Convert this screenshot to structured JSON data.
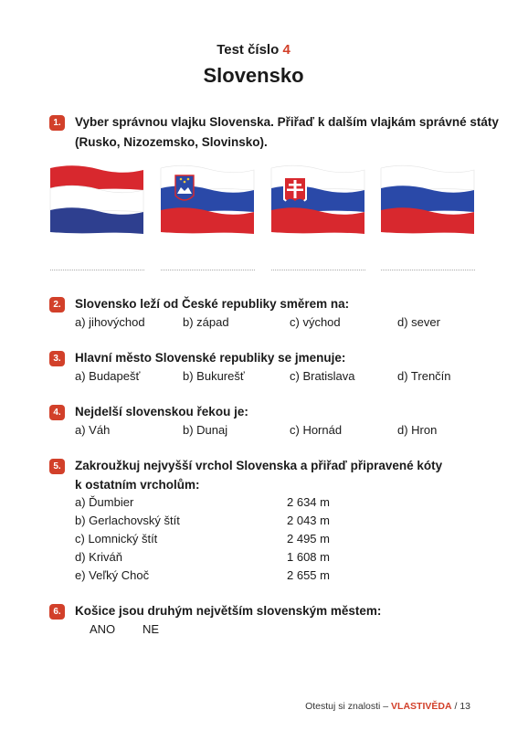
{
  "header": {
    "test_label": "Test číslo",
    "test_number": "4",
    "title": "Slovensko"
  },
  "questions": [
    {
      "number": "1.",
      "text_line1": "Vyber správnou vlajku Slovenska. Přiřaď k dalším vlajkám správné státy",
      "text_line2": "(Rusko, Nizozemsko, Slovinsko)."
    },
    {
      "number": "2.",
      "text": "Slovensko leží od České republiky směrem na:",
      "options": [
        "a) jihovýchod",
        "b) západ",
        "c) východ",
        "d) sever"
      ]
    },
    {
      "number": "3.",
      "text": "Hlavní město Slovenské republiky se jmenuje:",
      "options": [
        "a) Budapešť",
        "b) Bukurešť",
        "c) Bratislava",
        "d) Trenčín"
      ]
    },
    {
      "number": "4.",
      "text": "Nejdelší slovenskou řekou je:",
      "options": [
        "a) Váh",
        "b) Dunaj",
        "c) Hornád",
        "d) Hron"
      ]
    },
    {
      "number": "5.",
      "text_line1": "Zakroužkuj nejvyšší vrchol Slovenska a přiřaď připravené kóty",
      "text_line2": "k ostatním vrcholům:",
      "peaks": [
        {
          "label": "a) Ďumbier",
          "height": "2 634 m"
        },
        {
          "label": "b) Gerlachovský štít",
          "height": "2 043 m"
        },
        {
          "label": "c) Lomnický štít",
          "height": "2 495 m"
        },
        {
          "label": "d) Kriváň",
          "height": "1 608 m"
        },
        {
          "label": "e) Veľký Choč",
          "height": "2 655 m"
        }
      ]
    },
    {
      "number": "6.",
      "text": "Košice jsou druhým největším slovenským městem:",
      "options": [
        "ANO",
        "NE"
      ]
    }
  ],
  "flags": [
    {
      "name": "netherlands-flag",
      "stripes": [
        "#d8282e",
        "#ffffff",
        "#2e3f8f"
      ]
    },
    {
      "name": "slovenia-flag",
      "stripes": [
        "#ffffff",
        "#2a49a8",
        "#d8282e"
      ]
    },
    {
      "name": "slovakia-flag",
      "stripes": [
        "#ffffff",
        "#2a49a8",
        "#d8282e"
      ]
    },
    {
      "name": "russia-flag",
      "stripes": [
        "#ffffff",
        "#2a49a8",
        "#d8282e"
      ]
    }
  ],
  "footer": {
    "prefix": "Otestuj si znalosti –",
    "brand": "VLASTIVĚDA",
    "page": "/ 13"
  }
}
